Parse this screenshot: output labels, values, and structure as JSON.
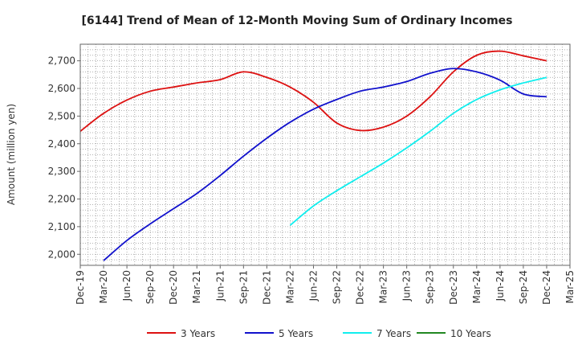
{
  "chart_data": {
    "type": "line",
    "title": "[6144]  Trend of Mean of 12-Month Moving Sum of Ordinary Incomes",
    "xlabel": "",
    "ylabel": "Amount (million yen)",
    "ylim": [
      1960,
      2760
    ],
    "yticks": [
      2000,
      2100,
      2200,
      2300,
      2400,
      2500,
      2600,
      2700
    ],
    "ytick_labels": [
      "2,000",
      "2,100",
      "2,200",
      "2,300",
      "2,400",
      "2,500",
      "2,600",
      "2,700"
    ],
    "x_labels": [
      "Dec-19",
      "Mar-20",
      "Jun-20",
      "Sep-20",
      "Dec-20",
      "Mar-21",
      "Jun-21",
      "Sep-21",
      "Dec-21",
      "Mar-22",
      "Jun-22",
      "Sep-22",
      "Dec-22",
      "Mar-23",
      "Jun-23",
      "Sep-23",
      "Dec-23",
      "Mar-24",
      "Jun-24",
      "Sep-24",
      "Dec-24",
      "Mar-25"
    ],
    "grid": true,
    "legend_position": "bottom",
    "series": [
      {
        "name": "3 Years",
        "color": "#dd1111",
        "points": [
          [
            0,
            2445
          ],
          [
            1,
            2510
          ],
          [
            2,
            2558
          ],
          [
            3,
            2590
          ],
          [
            4,
            2605
          ],
          [
            5,
            2620
          ],
          [
            6,
            2632
          ],
          [
            7,
            2660
          ],
          [
            8,
            2640
          ],
          [
            9,
            2605
          ],
          [
            10,
            2550
          ],
          [
            11,
            2475
          ],
          [
            12,
            2448
          ],
          [
            13,
            2460
          ],
          [
            14,
            2500
          ],
          [
            15,
            2570
          ],
          [
            16,
            2660
          ],
          [
            17,
            2720
          ],
          [
            18,
            2735
          ],
          [
            19,
            2718
          ],
          [
            20,
            2700
          ]
        ]
      },
      {
        "name": "5 Years",
        "color": "#1111cc",
        "points": [
          [
            1,
            1977
          ],
          [
            2,
            2050
          ],
          [
            3,
            2110
          ],
          [
            4,
            2165
          ],
          [
            5,
            2220
          ],
          [
            6,
            2285
          ],
          [
            7,
            2355
          ],
          [
            8,
            2420
          ],
          [
            9,
            2478
          ],
          [
            10,
            2525
          ],
          [
            11,
            2560
          ],
          [
            12,
            2590
          ],
          [
            13,
            2605
          ],
          [
            14,
            2625
          ],
          [
            15,
            2655
          ],
          [
            16,
            2672
          ],
          [
            17,
            2660
          ],
          [
            18,
            2630
          ],
          [
            19,
            2580
          ],
          [
            20,
            2570
          ]
        ]
      },
      {
        "name": "7 Years",
        "color": "#11eeee",
        "points": [
          [
            9,
            2105
          ],
          [
            10,
            2175
          ],
          [
            11,
            2230
          ],
          [
            12,
            2280
          ],
          [
            13,
            2330
          ],
          [
            14,
            2385
          ],
          [
            15,
            2445
          ],
          [
            16,
            2510
          ],
          [
            17,
            2560
          ],
          [
            18,
            2595
          ],
          [
            19,
            2620
          ],
          [
            20,
            2640
          ]
        ]
      },
      {
        "name": "10 Years",
        "color": "#228822",
        "points": []
      }
    ]
  }
}
